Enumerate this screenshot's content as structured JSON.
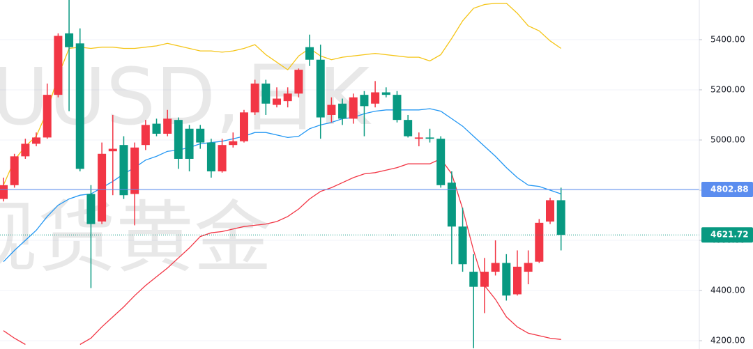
{
  "chart_data": {
    "type": "candlestick",
    "watermark": [
      "UUSD,日K",
      "现货黄金"
    ],
    "open": [
      4765,
      4820,
      4935,
      4985,
      5010,
      5180,
      5425,
      5385,
      4785,
      4675,
      4955,
      4980,
      4785,
      4980,
      5065,
      5025,
      5080,
      5045,
      5045,
      4990,
      4875,
      4980,
      4995,
      5110,
      5225,
      5140,
      5155,
      5185,
      5370,
      5320,
      5100,
      5145,
      5085,
      5180,
      5145,
      5190,
      5180,
      5080,
      5005,
      5010,
      5005,
      4830,
      4655,
      4475,
      4415,
      4475,
      4510,
      4385,
      4475,
      4515,
      4675,
      4760
    ],
    "high": [
      4850,
      4945,
      5005,
      5030,
      5225,
      5425,
      5560,
      5445,
      4820,
      4990,
      5100,
      5015,
      4990,
      5080,
      5085,
      5120,
      5090,
      5060,
      5060,
      5005,
      5005,
      5030,
      5120,
      5240,
      5240,
      5210,
      5210,
      5285,
      5420,
      5380,
      5170,
      5165,
      5185,
      5195,
      5235,
      5210,
      5195,
      5100,
      5030,
      5045,
      5015,
      4875,
      4730,
      4545,
      4530,
      4600,
      4545,
      4560,
      4560,
      4685,
      4770,
      4810
    ],
    "low": [
      4755,
      4810,
      4925,
      4975,
      5005,
      5170,
      5115,
      4875,
      4410,
      4665,
      4780,
      4765,
      4660,
      4960,
      5015,
      5015,
      4885,
      4875,
      4965,
      4850,
      4870,
      4970,
      4990,
      5100,
      5100,
      5130,
      5130,
      5170,
      5295,
      5005,
      5070,
      5060,
      5065,
      5015,
      5130,
      5170,
      5070,
      5010,
      4975,
      4990,
      4810,
      4505,
      4475,
      4170,
      4310,
      4460,
      4360,
      4380,
      4425,
      4510,
      4665,
      4560
    ],
    "close": [
      4820,
      4935,
      4985,
      5010,
      5180,
      5415,
      5370,
      4885,
      4665,
      4945,
      4965,
      4780,
      4970,
      5060,
      5025,
      5085,
      4925,
      4925,
      4990,
      4875,
      4980,
      4995,
      5110,
      5225,
      5145,
      5165,
      5185,
      5280,
      5320,
      5090,
      5140,
      5085,
      5170,
      5135,
      5190,
      5180,
      5080,
      5015,
      5010,
      5005,
      4820,
      4655,
      4505,
      4415,
      4475,
      4510,
      4380,
      4495,
      4510,
      4670,
      4760,
      4621.72
    ],
    "up_color": "#f23645",
    "down_color": "#089981",
    "overlays": [
      {
        "color": "#f5c518",
        "values": [
          4820,
          4920,
          4975,
          5015,
          5115,
          5255,
          5365,
          5370,
          5365,
          5370,
          5370,
          5365,
          5365,
          5370,
          5375,
          5385,
          5375,
          5365,
          5355,
          5355,
          5350,
          5355,
          5365,
          5380,
          5340,
          5310,
          5280,
          5335,
          5365,
          5335,
          5320,
          5330,
          5335,
          5340,
          5345,
          5340,
          5335,
          5330,
          5330,
          5315,
          5340,
          5405,
          5475,
          5525,
          5540,
          5545,
          5545,
          5505,
          5455,
          5435,
          5395,
          5365
        ]
      },
      {
        "color": "#2196f3",
        "values": [
          4515,
          4560,
          4600,
          4640,
          4695,
          4740,
          4765,
          4780,
          4785,
          4810,
          4835,
          4865,
          4890,
          4920,
          4935,
          4955,
          4960,
          4970,
          4985,
          4990,
          4995,
          5005,
          5015,
          5030,
          5030,
          5020,
          5010,
          5015,
          5045,
          5060,
          5070,
          5085,
          5090,
          5105,
          5115,
          5120,
          5120,
          5120,
          5120,
          5125,
          5115,
          5085,
          5055,
          5015,
          4975,
          4935,
          4890,
          4850,
          4820,
          4815,
          4800,
          4785
        ]
      },
      {
        "color": "#f23645",
        "values": [
          4240,
          4210,
          4185,
          null,
          null,
          null,
          null,
          4185,
          4210,
          4255,
          4295,
          4335,
          4380,
          4420,
          4455,
          4490,
          4530,
          4570,
          4615,
          4630,
          4635,
          4645,
          4655,
          4660,
          4665,
          4675,
          4695,
          4725,
          4765,
          4795,
          4810,
          4830,
          4850,
          4865,
          4870,
          4880,
          4890,
          4905,
          4905,
          4905,
          4925,
          4865,
          4725,
          4560,
          4420,
          4365,
          4295,
          4255,
          4230,
          4220,
          4210,
          4205
        ]
      }
    ],
    "price_lines": [
      {
        "value": 4802.88,
        "color": "#5b8def",
        "style": "solid"
      },
      {
        "value": 4621.72,
        "color": "#089981",
        "style": "dotted"
      }
    ],
    "ylim": [
      4167,
      5558
    ],
    "yticks": [
      {
        "value": 4200,
        "label": "4200.00"
      },
      {
        "value": 4400,
        "label": "4400.00"
      },
      {
        "value": 4600,
        "label": "4600.00"
      },
      {
        "value": 4800,
        "label": "4800.00"
      },
      {
        "value": 5000,
        "label": "5000.00"
      },
      {
        "value": 5200,
        "label": "5200.00"
      },
      {
        "value": 5400,
        "label": "5400.00"
      }
    ],
    "grid": true
  }
}
